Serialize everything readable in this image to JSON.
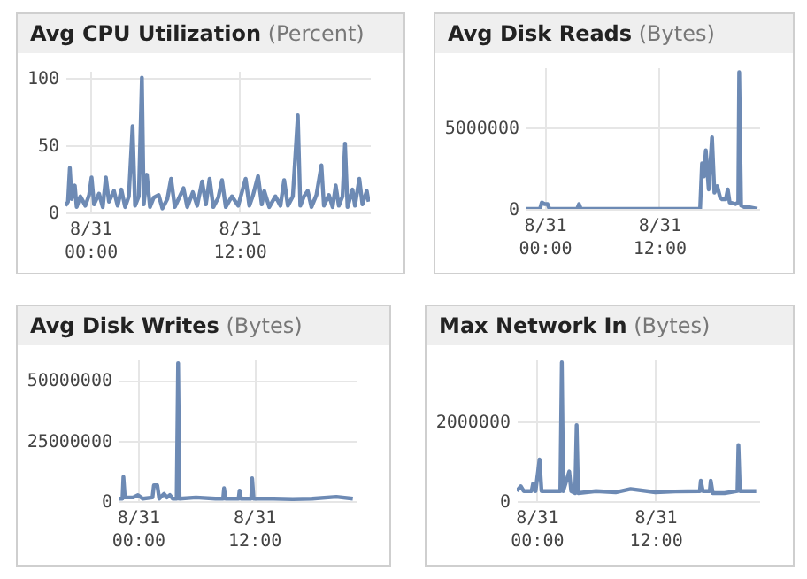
{
  "chart_data": [
    {
      "type": "line",
      "title": "Avg CPU Utilization",
      "subtitle": "(Percent)",
      "xlim": [
        "--08-30T22:00",
        "--08-31T22:30"
      ],
      "ylim": [
        0,
        105
      ],
      "xticks": [
        {
          "value": "--08-31T00:00",
          "label": "8/31\n00:00"
        },
        {
          "value": "--08-31T12:00",
          "label": "8/31\n12:00"
        }
      ],
      "yticks": [
        0,
        50,
        100
      ],
      "grid": true,
      "line_style": "solid",
      "x": [
        "--08-30T22:00",
        "--08-30T22:12",
        "--08-30T22:21",
        "--08-30T22:30",
        "--08-30T22:45",
        "--08-30T22:54",
        "--08-30T23:12",
        "--08-30T23:36",
        "--08-30T23:54",
        "--08-31T00:06",
        "--08-31T00:18",
        "--08-31T00:42",
        "--08-31T01:00",
        "--08-31T01:15",
        "--08-31T01:30",
        "--08-31T01:54",
        "--08-31T02:12",
        "--08-31T02:30",
        "--08-31T02:48",
        "--08-31T03:06",
        "--08-31T03:24",
        "--08-31T03:36",
        "--08-31T03:54",
        "--08-31T04:09",
        "--08-31T04:18",
        "--08-31T04:33",
        "--08-31T04:48",
        "--08-31T05:06",
        "--08-31T05:30",
        "--08-31T05:48",
        "--08-31T06:12",
        "--08-31T06:30",
        "--08-31T06:48",
        "--08-31T07:12",
        "--08-31T07:30",
        "--08-31T07:48",
        "--08-31T08:15",
        "--08-31T08:36",
        "--08-31T09:00",
        "--08-31T09:18",
        "--08-31T09:36",
        "--08-31T09:54",
        "--08-31T10:18",
        "--08-31T10:36",
        "--08-31T10:54",
        "--08-31T11:24",
        "--08-31T11:54",
        "--08-31T12:30",
        "--08-31T12:48",
        "--08-31T13:06",
        "--08-31T13:30",
        "--08-31T13:48",
        "--08-31T14:00",
        "--08-31T14:24",
        "--08-31T14:54",
        "--08-31T15:18",
        "--08-31T15:36",
        "--08-31T15:54",
        "--08-31T16:18",
        "--08-31T16:42",
        "--08-31T16:54",
        "--08-31T17:12",
        "--08-31T17:30",
        "--08-31T17:48",
        "--08-31T18:12",
        "--08-31T18:36",
        "--08-31T18:48",
        "--08-31T19:12",
        "--08-31T19:30",
        "--08-31T19:45",
        "--08-31T20:00",
        "--08-31T20:18",
        "--08-31T20:30",
        "--08-31T20:42",
        "--08-31T21:06",
        "--08-31T21:18",
        "--08-31T21:39",
        "--08-31T21:54",
        "--08-31T22:15",
        "--08-31T22:24"
      ],
      "series": [
        {
          "color": "#6d8ab4",
          "values": [
            5,
            8,
            33,
            10,
            20,
            4,
            12,
            5,
            13,
            26,
            6,
            14,
            4,
            26,
            8,
            16,
            5,
            17,
            4,
            12,
            64,
            5,
            12,
            100,
            6,
            28,
            4,
            11,
            13,
            3,
            10,
            25,
            4,
            12,
            18,
            4,
            15,
            5,
            23,
            6,
            25,
            4,
            11,
            24,
            4,
            12,
            5,
            25,
            5,
            13,
            27,
            6,
            16,
            4,
            12,
            5,
            24,
            5,
            12,
            72,
            5,
            12,
            16,
            4,
            13,
            35,
            5,
            13,
            4,
            20,
            5,
            12,
            51,
            4,
            17,
            5,
            25,
            6,
            16,
            8
          ]
        }
      ]
    },
    {
      "type": "line",
      "title": "Avg Disk Reads",
      "subtitle": "(Bytes)",
      "xlim": [
        "--08-30T22:00",
        "--08-31T22:30"
      ],
      "ylim": [
        0,
        8700000
      ],
      "xticks": [
        {
          "value": "--08-31T00:00",
          "label": "8/31\n00:00"
        },
        {
          "value": "--08-31T12:00",
          "label": "8/31\n12:00"
        }
      ],
      "yticks": [
        0,
        5000000
      ],
      "grid": true,
      "line_style": "solid",
      "x": [
        "--08-30T22:00",
        "--08-30T23:30",
        "--08-30T23:42",
        "--08-31T00:00",
        "--08-31T00:18",
        "--08-31T00:30",
        "--08-31T03:24",
        "--08-31T03:36",
        "--08-31T03:48",
        "--08-31T16:18",
        "--08-31T16:30",
        "--08-31T16:42",
        "--08-31T16:54",
        "--08-31T17:12",
        "--08-31T17:33",
        "--08-31T17:48",
        "--08-31T18:06",
        "--08-31T18:24",
        "--08-31T18:36",
        "--08-31T19:00",
        "--08-31T19:12",
        "--08-31T19:24",
        "--08-31T20:00",
        "--08-31T20:18",
        "--08-31T20:24",
        "--08-31T20:36",
        "--08-31T21:00",
        "--08-31T21:30",
        "--08-31T22:18"
      ],
      "series": [
        {
          "color": "#6d8ab4",
          "values": [
            0,
            0,
            400000,
            300000,
            300000,
            0,
            0,
            300000,
            0,
            0,
            2800000,
            2000000,
            3600000,
            1200000,
            4400000,
            1000000,
            1400000,
            700000,
            600000,
            600000,
            1200000,
            400000,
            300000,
            400000,
            8400000,
            200000,
            100000,
            100000,
            0
          ]
        }
      ]
    },
    {
      "type": "line",
      "title": "Avg Disk Writes",
      "subtitle": "(Bytes)",
      "xlim": [
        "--08-30T22:00",
        "--08-31T22:30"
      ],
      "ylim": [
        0,
        58500000
      ],
      "xticks": [
        {
          "value": "--08-31T00:00",
          "label": "8/31\n00:00"
        },
        {
          "value": "--08-31T12:00",
          "label": "8/31\n12:00"
        }
      ],
      "yticks": [
        0,
        25000000,
        50000000
      ],
      "grid": true,
      "line_style": "solid",
      "x": [
        "--08-30T22:00",
        "--08-30T22:24",
        "--08-30T22:30",
        "--08-30T22:39",
        "--08-30T23:30",
        "--08-31T00:00",
        "--08-31T00:30",
        "--08-31T01:30",
        "--08-31T01:39",
        "--08-31T02:00",
        "--08-31T02:12",
        "--08-31T02:42",
        "--08-31T03:00",
        "--08-31T03:18",
        "--08-31T03:36",
        "--08-31T04:00",
        "--08-31T04:09",
        "--08-31T04:18",
        "--08-31T06:00",
        "--08-31T08:00",
        "--08-31T08:48",
        "--08-31T08:54",
        "--08-31T09:03",
        "--08-31T10:24",
        "--08-31T10:30",
        "--08-31T10:39",
        "--08-31T11:42",
        "--08-31T11:48",
        "--08-31T11:57",
        "--08-31T14:00",
        "--08-31T16:00",
        "--08-31T18:00",
        "--08-31T20:30",
        "--08-31T22:12"
      ],
      "series": [
        {
          "color": "#6d8ab4",
          "values": [
            1000000,
            1000000,
            10000000,
            1500000,
            1500000,
            2500000,
            1000000,
            1500000,
            6500000,
            6500000,
            1000000,
            3000000,
            1500000,
            2500000,
            1000000,
            1000000,
            57000000,
            1000000,
            1500000,
            1000000,
            1000000,
            5300000,
            1000000,
            1000000,
            4300000,
            1000000,
            1000000,
            9400000,
            1000000,
            1000000,
            800000,
            1000000,
            1800000,
            1000000
          ]
        }
      ]
    },
    {
      "type": "line",
      "title": "Max Network In",
      "subtitle": "(Bytes)",
      "xlim": [
        "--08-30T22:00",
        "--08-31T22:30"
      ],
      "ylim": [
        0,
        3540000
      ],
      "xticks": [
        {
          "value": "--08-31T00:00",
          "label": "8/31\n00:00"
        },
        {
          "value": "--08-31T12:00",
          "label": "8/31\n12:00"
        }
      ],
      "yticks": [
        0,
        2000000
      ],
      "grid": true,
      "line_style": "solid",
      "x": [
        "--08-30T22:00",
        "--08-30T22:24",
        "--08-30T22:42",
        "--08-30T23:30",
        "--08-30T23:39",
        "--08-30T23:54",
        "--08-31T00:18",
        "--08-31T00:30",
        "--08-31T02:24",
        "--08-31T02:33",
        "--08-31T02:42",
        "--08-31T03:18",
        "--08-31T03:30",
        "--08-31T03:54",
        "--08-31T04:03",
        "--08-31T04:12",
        "--08-31T06:00",
        "--08-31T08:00",
        "--08-31T09:30",
        "--08-31T12:00",
        "--08-31T14:00",
        "--08-31T16:30",
        "--08-31T16:36",
        "--08-31T16:48",
        "--08-31T17:30",
        "--08-31T17:36",
        "--08-31T17:48",
        "--08-31T19:00",
        "--08-31T20:18",
        "--08-31T20:24",
        "--08-31T20:33",
        "--08-31T22:12"
      ],
      "series": [
        {
          "color": "#6d8ab4",
          "values": [
            250000,
            370000,
            250000,
            250000,
            440000,
            250000,
            1040000,
            250000,
            250000,
            3470000,
            250000,
            740000,
            250000,
            200000,
            1900000,
            200000,
            250000,
            220000,
            300000,
            220000,
            240000,
            250000,
            510000,
            250000,
            250000,
            510000,
            200000,
            200000,
            250000,
            1400000,
            250000,
            250000
          ]
        }
      ]
    }
  ]
}
